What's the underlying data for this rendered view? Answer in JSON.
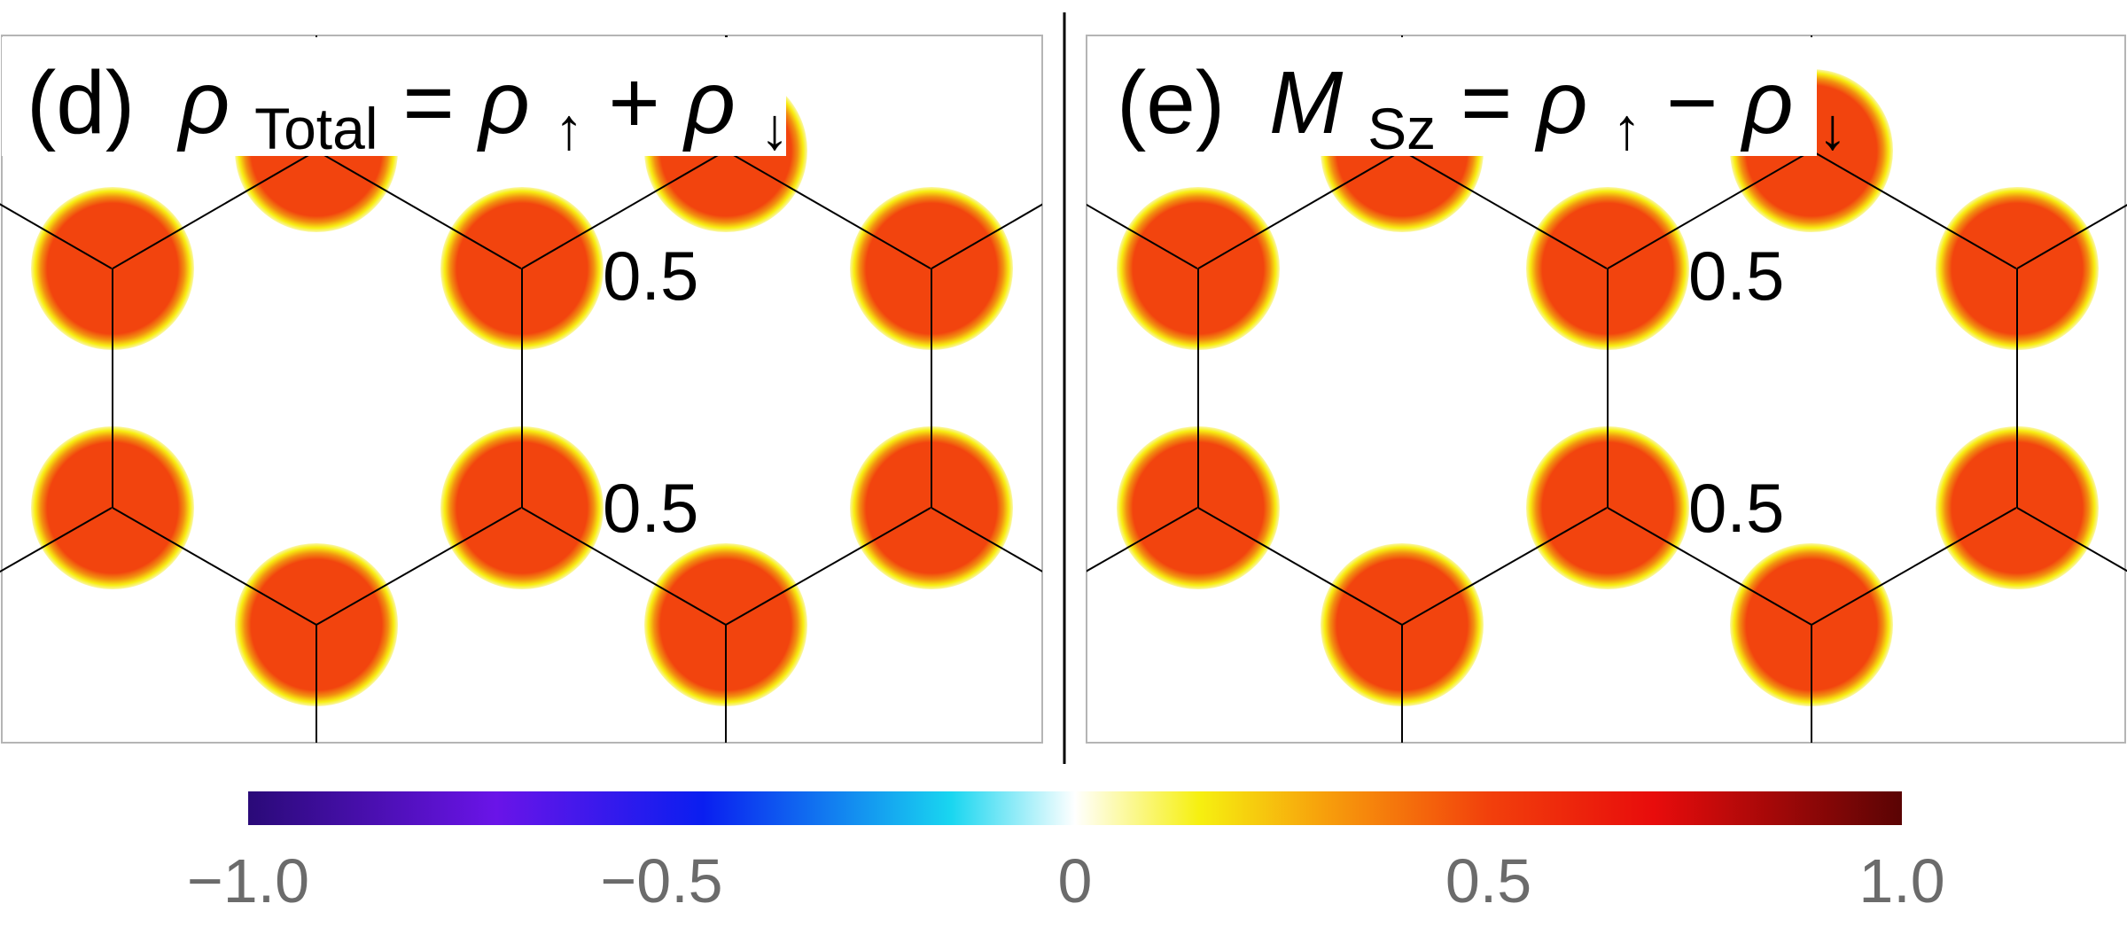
{
  "chart_data": [
    {
      "type": "heatmap",
      "panel_label": "(d)",
      "title_symbol": "ρ",
      "title_subscript": "Total",
      "title_equals": "=",
      "title_rhs": [
        {
          "symbol": "ρ",
          "sub": "↑"
        },
        {
          "op": "+"
        },
        {
          "symbol": "ρ",
          "sub": "↓"
        }
      ],
      "annotations": [
        "0.5",
        "0.5"
      ],
      "site_value": 0.5,
      "lattice": "honeycomb"
    },
    {
      "type": "heatmap",
      "panel_label": "(e)",
      "title_symbol": "M",
      "title_subscript": "Sz",
      "title_equals": "=",
      "title_rhs": [
        {
          "symbol": "ρ",
          "sub": "↑"
        },
        {
          "op": "−"
        },
        {
          "symbol": "ρ",
          "sub": "↓"
        }
      ],
      "annotations": [
        "0.5",
        "0.5"
      ],
      "site_value": 0.5,
      "lattice": "honeycomb"
    }
  ],
  "colorbar": {
    "min": -1.0,
    "max": 1.0,
    "ticks": [
      "−1.0",
      "−0.5",
      "0",
      "0.5",
      "1.0"
    ],
    "tick_values": [
      -1.0,
      -0.5,
      0,
      0.5,
      1.0
    ],
    "colors": [
      {
        "value": -1.0,
        "color": "#2a0a78"
      },
      {
        "value": -0.7,
        "color": "#6a14e8"
      },
      {
        "value": -0.45,
        "color": "#0a1ef0"
      },
      {
        "value": -0.15,
        "color": "#19d6f0"
      },
      {
        "value": 0.0,
        "color": "#ffffff"
      },
      {
        "value": 0.15,
        "color": "#f6f010"
      },
      {
        "value": 0.3,
        "color": "#f7a00c"
      },
      {
        "value": 0.5,
        "color": "#f2400c"
      },
      {
        "value": 0.7,
        "color": "#e80c0c"
      },
      {
        "value": 1.0,
        "color": "#5a0404"
      }
    ]
  },
  "colors": {
    "site": "#f2440e",
    "site_edge": "#f8f40a",
    "frame": "#b5b5b5",
    "bonds": "#000000",
    "tick_text": "#6b6b6b"
  }
}
